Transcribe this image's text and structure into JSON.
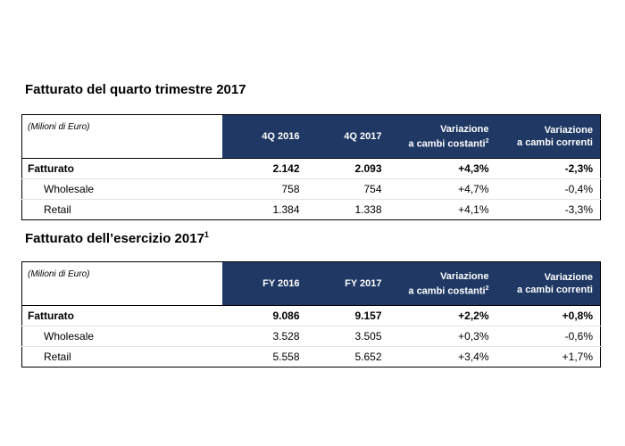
{
  "sections": [
    {
      "title": {
        "text": "Fatturato del quarto trimestre 2017"
      },
      "table": {
        "unit": "(Milioni di Euro)",
        "columns": [
          {
            "line1": "4Q 2016"
          },
          {
            "line1": "4Q 2017"
          },
          {
            "line1": "Variazione",
            "line2": "a cambi costanti",
            "note": "2"
          },
          {
            "line1": "Variazione",
            "line2": "a cambi correnti"
          }
        ],
        "rows": [
          [
            "Fatturato",
            "2.142",
            "2.093",
            "+4,3%",
            "-2,3%"
          ],
          [
            "Wholesale",
            "758",
            "754",
            "+4,7%",
            "-0,4%"
          ],
          [
            "Retail",
            "1.384",
            "1.338",
            "+4,1%",
            "-3,3%"
          ]
        ]
      }
    },
    {
      "title": {
        "text": "Fatturato dell’esercizio 2017",
        "note": "1"
      },
      "table": {
        "unit": "(Milioni di Euro)",
        "columns": [
          {
            "line1": "FY 2016"
          },
          {
            "line1": "FY 2017"
          },
          {
            "line1": "Variazione",
            "line2": "a cambi costanti",
            "note": "2"
          },
          {
            "line1": "Variazione",
            "line2": "a cambi correnti"
          }
        ],
        "rows": [
          [
            "Fatturato",
            "9.086",
            "9.157",
            "+2,2%",
            "+0,8%"
          ],
          [
            "Wholesale",
            "3.528",
            "3.505",
            "+0,3%",
            "-0,6%"
          ],
          [
            "Retail",
            "5.558",
            "5.652",
            "+3,4%",
            "+1,7%"
          ]
        ]
      }
    }
  ]
}
